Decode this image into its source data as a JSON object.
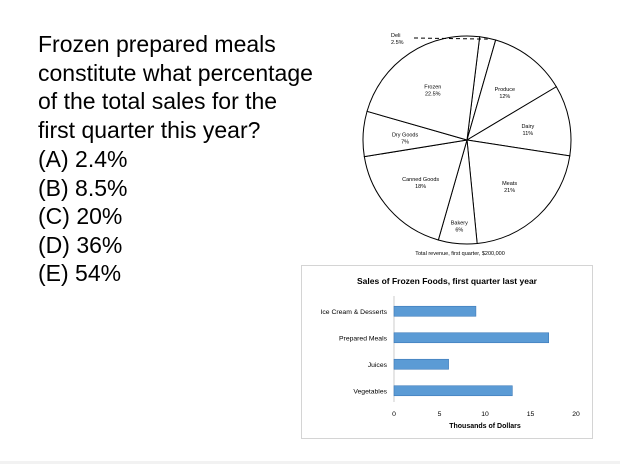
{
  "question": {
    "lines": [
      "Frozen prepared meals",
      "constitute what percentage",
      "of the total sales for the",
      "first quarter this year?"
    ],
    "choices": [
      "(A) 2.4%",
      "(B) 8.5%",
      "(C) 20%",
      "(D) 36%",
      "(E) 54%"
    ]
  },
  "chart_data": [
    {
      "type": "pie",
      "title": "",
      "caption": "Total revenue, first quarter, $200,000",
      "slices": [
        {
          "label": "Deli",
          "value": 2.5,
          "display": "2.5%"
        },
        {
          "label": "Produce",
          "value": 12,
          "display": "12%"
        },
        {
          "label": "Dairy",
          "value": 11,
          "display": "11%"
        },
        {
          "label": "Meats",
          "value": 21,
          "display": "21%"
        },
        {
          "label": "Bakery",
          "value": 6,
          "display": "6%"
        },
        {
          "label": "Canned Goods",
          "value": 18,
          "display": "18%"
        },
        {
          "label": "Dry Goods",
          "value": 7,
          "display": "7%"
        },
        {
          "label": "Frozen",
          "value": 22.5,
          "display": "22.5%"
        }
      ],
      "colors": {
        "fill": "#ffffff",
        "stroke": "#000000"
      }
    },
    {
      "type": "bar",
      "orientation": "horizontal",
      "title": "Sales of Frozen Foods, first quarter last year",
      "xlabel": "Thousands of Dollars",
      "ylabel": "",
      "categories": [
        "Ice Cream & Desserts",
        "Prepared Meals",
        "Juices",
        "Vegetables"
      ],
      "values": [
        9,
        17,
        6,
        13
      ],
      "xlim": [
        0,
        20
      ],
      "ticks": [
        0,
        5,
        10,
        15,
        20
      ],
      "grid": false,
      "colors": {
        "bar": "#5b9bd5",
        "bar_edge": "#3d7ab8"
      }
    }
  ]
}
